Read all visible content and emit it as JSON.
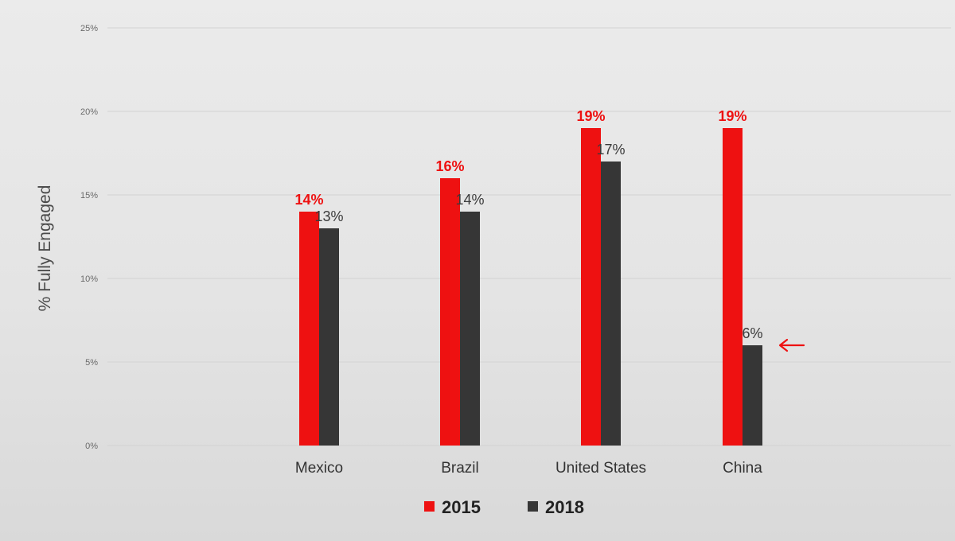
{
  "chart_data": {
    "type": "bar",
    "ylabel": "% Fully Engaged",
    "ylim": [
      0,
      25
    ],
    "yticks": [
      "0%",
      "5%",
      "10%",
      "15%",
      "20%",
      "25%"
    ],
    "categories": [
      "Mexico",
      "Brazil",
      "United States",
      "China"
    ],
    "series": [
      {
        "name": "2015",
        "color": "#ee1111",
        "values": [
          14,
          16,
          19,
          19
        ],
        "labels": [
          "14%",
          "16%",
          "19%",
          "19%"
        ]
      },
      {
        "name": "2018",
        "color": "#363636",
        "values": [
          13,
          14,
          17,
          6
        ],
        "labels": [
          "13%",
          "14%",
          "17%",
          "6%"
        ]
      }
    ],
    "legend": "bottom-center",
    "grid": true,
    "annotation": {
      "type": "arrow-icon",
      "category": "China",
      "series": "2018",
      "color": "#ee1111"
    }
  }
}
